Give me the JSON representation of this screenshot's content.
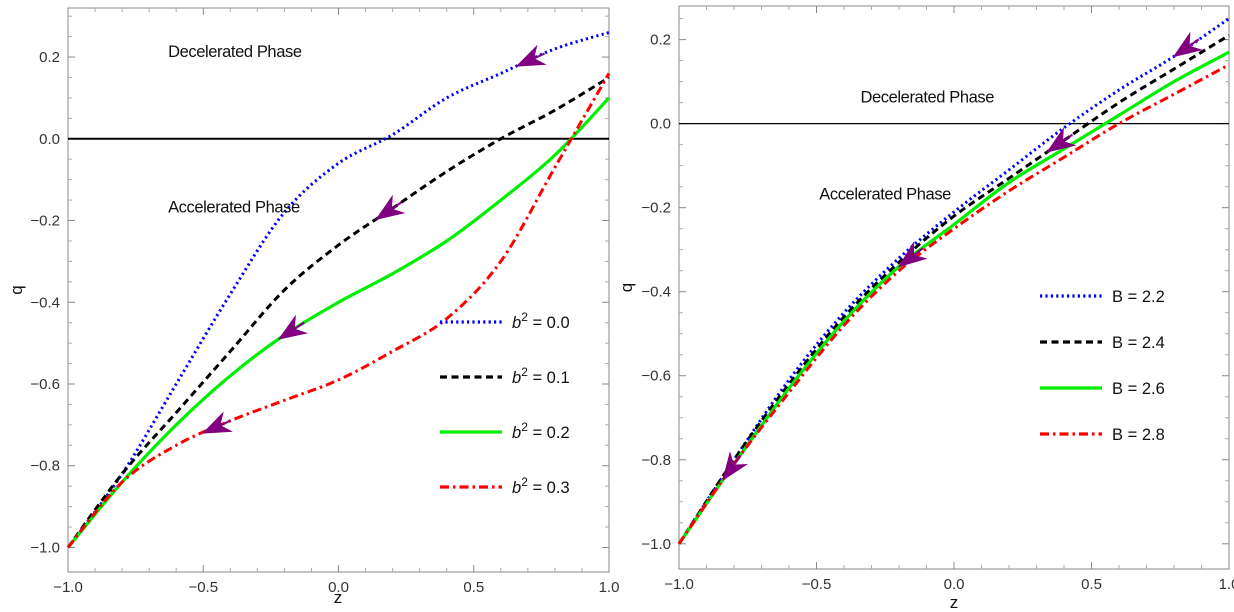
{
  "chart_data": [
    {
      "type": "line",
      "xlabel": "z",
      "ylabel": "q",
      "xlim": [
        -1.0,
        1.0
      ],
      "ylim": [
        -1.06,
        0.32
      ],
      "xticks": [
        "-1.0",
        "-0.5",
        "0.0",
        "0.5",
        "1.0"
      ],
      "yticks": [
        "-1.0",
        "-0.8",
        "-0.6",
        "-0.4",
        "-0.2",
        "0.0",
        "0.2"
      ],
      "grid": false,
      "legend_position": "bottom-right",
      "reference_line_y": 0.0,
      "annotations": [
        {
          "text": "Decelerated Phase",
          "x": -0.63,
          "y": 0.2
        },
        {
          "text": "Accelerated Phase",
          "x": -0.63,
          "y": -0.18
        }
      ],
      "x": [
        -1.0,
        -0.8,
        -0.6,
        -0.4,
        -0.2,
        0.0,
        0.2,
        0.4,
        0.6,
        0.8,
        1.0
      ],
      "series": [
        {
          "name_prefix": "b",
          "name_exp": "2",
          "name_suffix": " = 0.0",
          "color": "#0000ff",
          "dash": "dotted",
          "values": [
            -1.0,
            -0.82,
            -0.6,
            -0.38,
            -0.18,
            -0.06,
            0.01,
            0.1,
            0.16,
            0.22,
            0.26
          ]
        },
        {
          "name_prefix": "b",
          "name_exp": "2",
          "name_suffix": " = 0.1",
          "color": "#000000",
          "dash": "dashed",
          "values": [
            -1.0,
            -0.82,
            -0.67,
            -0.52,
            -0.37,
            -0.26,
            -0.17,
            -0.08,
            0.0,
            0.07,
            0.15
          ]
        },
        {
          "name_prefix": "b",
          "name_exp": "2",
          "name_suffix": " = 0.2",
          "color": "#00ee00",
          "dash": "solid",
          "values": [
            -1.0,
            -0.84,
            -0.7,
            -0.58,
            -0.48,
            -0.4,
            -0.33,
            -0.25,
            -0.15,
            -0.04,
            0.1
          ]
        },
        {
          "name_prefix": "b",
          "name_exp": "2",
          "name_suffix": " = 0.3",
          "color": "#ff0000",
          "dash": "dashdot",
          "values": [
            -1.0,
            -0.84,
            -0.75,
            -0.69,
            -0.64,
            -0.59,
            -0.52,
            -0.44,
            -0.3,
            -0.07,
            0.16
          ]
        }
      ],
      "arrows": [
        {
          "series": 0,
          "x": 0.66
        },
        {
          "series": 1,
          "x": 0.14
        },
        {
          "series": 2,
          "x": -0.22
        },
        {
          "series": 3,
          "x": -0.5
        }
      ]
    },
    {
      "type": "line",
      "xlabel": "z",
      "ylabel": "q",
      "xlim": [
        -1.0,
        1.0
      ],
      "ylim": [
        -1.06,
        0.28
      ],
      "xticks": [
        "-1.0",
        "-0.5",
        "0.0",
        "0.5",
        "1.0"
      ],
      "yticks": [
        "-1.0",
        "-0.8",
        "-0.6",
        "-0.4",
        "-0.2",
        "0.0",
        "0.2"
      ],
      "grid": false,
      "legend_position": "center-right",
      "reference_line_y": 0.0,
      "annotations": [
        {
          "text": "Decelerated Phase",
          "x": -0.34,
          "y": 0.05
        },
        {
          "text": "Accelerated Phase",
          "x": -0.49,
          "y": -0.18
        }
      ],
      "x": [
        -1.0,
        -0.8,
        -0.6,
        -0.4,
        -0.2,
        0.0,
        0.2,
        0.4,
        0.6,
        0.8,
        1.0
      ],
      "series": [
        {
          "name_prefix": "B",
          "name_exp": "",
          "name_suffix": " = 2.2",
          "color": "#0000ff",
          "dash": "dotted",
          "values": [
            -1.0,
            -0.8,
            -0.61,
            -0.45,
            -0.32,
            -0.21,
            -0.11,
            -0.01,
            0.08,
            0.16,
            0.25
          ]
        },
        {
          "name_prefix": "B",
          "name_exp": "",
          "name_suffix": " = 2.4",
          "color": "#000000",
          "dash": "dashed",
          "values": [
            -1.0,
            -0.8,
            -0.62,
            -0.46,
            -0.33,
            -0.22,
            -0.13,
            -0.04,
            0.05,
            0.13,
            0.21
          ]
        },
        {
          "name_prefix": "B",
          "name_exp": "",
          "name_suffix": " = 2.6",
          "color": "#00ee00",
          "dash": "solid",
          "values": [
            -1.0,
            -0.81,
            -0.63,
            -0.47,
            -0.34,
            -0.24,
            -0.14,
            -0.06,
            0.02,
            0.1,
            0.17
          ]
        },
        {
          "name_prefix": "B",
          "name_exp": "",
          "name_suffix": " = 2.8",
          "color": "#ff0000",
          "dash": "dashdot",
          "values": [
            -1.0,
            -0.81,
            -0.64,
            -0.48,
            -0.35,
            -0.25,
            -0.16,
            -0.08,
            0.0,
            0.07,
            0.14
          ]
        }
      ],
      "arrows": [
        {
          "series": 0,
          "x": 0.8
        },
        {
          "series": 1,
          "x": 0.34
        },
        {
          "series": 2,
          "x": -0.2
        },
        {
          "series": 3,
          "x": -0.84
        }
      ]
    }
  ]
}
